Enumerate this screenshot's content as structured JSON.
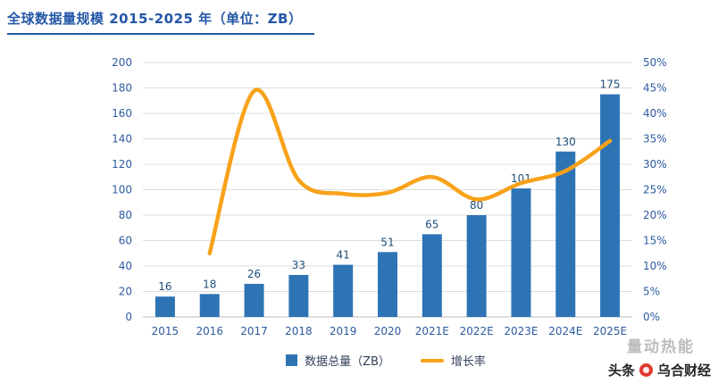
{
  "page": {
    "title": "全球数据量规模 2015-2025 年（单位：ZB）"
  },
  "chart_data": {
    "type": "bar+line combo",
    "categories": [
      "2015",
      "2016",
      "2017",
      "2018",
      "2019",
      "2020",
      "2021E",
      "2022E",
      "2023E",
      "2024E",
      "2025E"
    ],
    "series": [
      {
        "name": "数据总量（ZB）",
        "type": "bar",
        "axis": "left",
        "color": "#2e74b5",
        "values": [
          16,
          18,
          26,
          33,
          41,
          51,
          65,
          80,
          101,
          130,
          175
        ]
      },
      {
        "name": "增长率",
        "type": "line",
        "axis": "right",
        "color": "#f7a21a",
        "values": [
          null,
          12.5,
          44.4,
          26.9,
          24.2,
          24.4,
          27.5,
          23.1,
          26.3,
          28.7,
          34.6
        ]
      }
    ],
    "left_axis": {
      "min": 0,
      "max": 200,
      "step": 20
    },
    "right_axis": {
      "min": 0,
      "max": 50,
      "step": 5,
      "suffix": "%"
    },
    "grid": true,
    "legend_position": "bottom",
    "data_labels": true
  },
  "legend": {
    "items": [
      {
        "label": "数据总量（ZB）",
        "swatch": "bar"
      },
      {
        "label": "增长率",
        "swatch": "line"
      }
    ]
  },
  "watermark": {
    "text": "量动热能"
  },
  "footer": {
    "platform": "头条",
    "brand": "乌合财经"
  }
}
